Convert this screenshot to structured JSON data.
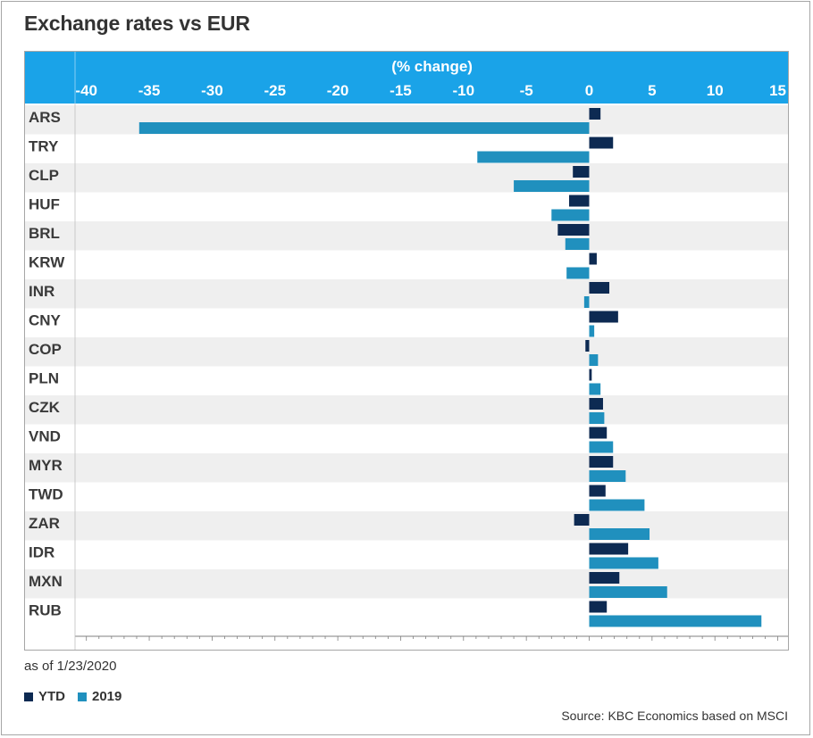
{
  "title": "Exchange rates vs EUR",
  "note": "as of 1/23/2020",
  "source": "Source: KBC Economics based on MSCI",
  "colors": {
    "header": "#1aa3e8",
    "ytd": "#0d2a52",
    "y2019": "#2090be",
    "stripe": "#efefef"
  },
  "chart_data": {
    "type": "bar",
    "orientation": "horizontal",
    "xlabel": "(% change)",
    "xlim": [
      -41,
      16
    ],
    "xticks": [
      -40,
      -35,
      -30,
      -25,
      -20,
      -15,
      -10,
      -5,
      0,
      5,
      10,
      15
    ],
    "categories": [
      "ARS",
      "TRY",
      "CLP",
      "HUF",
      "BRL",
      "KRW",
      "INR",
      "CNY",
      "COP",
      "PLN",
      "CZK",
      "VND",
      "MYR",
      "TWD",
      "ZAR",
      "IDR",
      "MXN",
      "RUB"
    ],
    "series": [
      {
        "name": "YTD",
        "values": [
          0.9,
          1.9,
          -1.3,
          -1.6,
          -2.5,
          0.6,
          1.6,
          2.3,
          -0.3,
          0.2,
          1.1,
          1.4,
          1.9,
          1.3,
          -1.2,
          3.1,
          2.4,
          1.4
        ]
      },
      {
        "name": "2019",
        "values": [
          -35.8,
          -8.9,
          -6.0,
          -3.0,
          -1.9,
          -1.8,
          -0.4,
          0.4,
          0.7,
          0.9,
          1.2,
          1.9,
          2.9,
          4.4,
          4.8,
          5.5,
          6.2,
          13.7
        ]
      }
    ],
    "legend_position": "bottom-left",
    "grid": false
  }
}
